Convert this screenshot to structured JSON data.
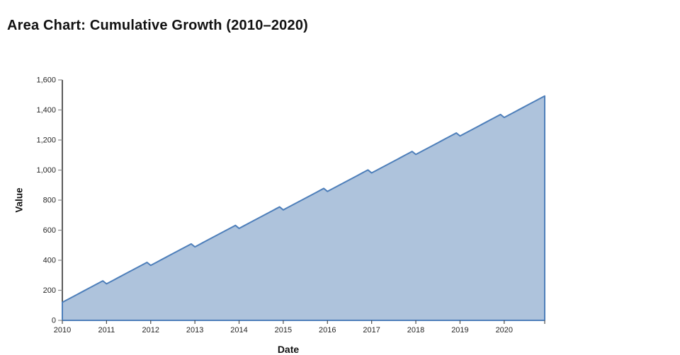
{
  "chart_data": {
    "type": "area",
    "title": "Area Chart: Cumulative Growth (2010–2020)",
    "xlabel": "Date",
    "ylabel": "Value",
    "x_unit": "month",
    "x_range": [
      2010,
      2020.9167
    ],
    "ylim": [
      0,
      1600
    ],
    "grid": false,
    "legend": "none",
    "x_ticks": [
      2010,
      2011,
      2012,
      2013,
      2014,
      2015,
      2016,
      2017,
      2018,
      2019,
      2020,
      2020.9167
    ],
    "x_tick_labels": [
      "2010",
      "2011",
      "2012",
      "2013",
      "2014",
      "2015",
      "2016",
      "2017",
      "2018",
      "2019",
      "2020",
      ""
    ],
    "y_ticks": [
      0,
      200,
      400,
      600,
      800,
      1000,
      1200,
      1400,
      1600
    ],
    "y_tick_labels": [
      "0",
      "200",
      "400",
      "600",
      "800",
      "1,000",
      "1,200",
      "1,400",
      "1,600"
    ],
    "series": [
      {
        "name": "Cumulative Growth",
        "x_start_year": 2010,
        "points_per_year": 12,
        "values": [
          120,
          133,
          146,
          159,
          172,
          185,
          198,
          211,
          224,
          237,
          250,
          263,
          243,
          256,
          269,
          282,
          295,
          308,
          321,
          334,
          347,
          360,
          373,
          386,
          366,
          379,
          392,
          405,
          418,
          431,
          444,
          457,
          470,
          483,
          496,
          509,
          489,
          502,
          515,
          528,
          541,
          554,
          567,
          580,
          593,
          606,
          619,
          632,
          612,
          625,
          638,
          651,
          664,
          677,
          690,
          703,
          716,
          729,
          742,
          755,
          735,
          748,
          761,
          774,
          787,
          800,
          813,
          826,
          839,
          852,
          865,
          878,
          858,
          871,
          884,
          897,
          910,
          923,
          936,
          949,
          962,
          975,
          988,
          1001,
          981,
          994,
          1007,
          1020,
          1033,
          1046,
          1059,
          1072,
          1085,
          1098,
          1111,
          1124,
          1104,
          1117,
          1130,
          1143,
          1156,
          1169,
          1182,
          1195,
          1208,
          1221,
          1234,
          1247,
          1227,
          1240,
          1253,
          1266,
          1279,
          1292,
          1305,
          1318,
          1331,
          1344,
          1357,
          1370,
          1350,
          1363,
          1376,
          1389,
          1402,
          1415,
          1428,
          1441,
          1454,
          1467,
          1480,
          1493
        ]
      }
    ],
    "colors": {
      "area_fill": "#aec3dc",
      "area_stroke": "#4e7fba",
      "axis_line": "#262626",
      "y_tick": "#8c8c8c",
      "x_tick": "#4d4d4d",
      "tick_label": "#262626",
      "background": "#ffffff"
    }
  }
}
